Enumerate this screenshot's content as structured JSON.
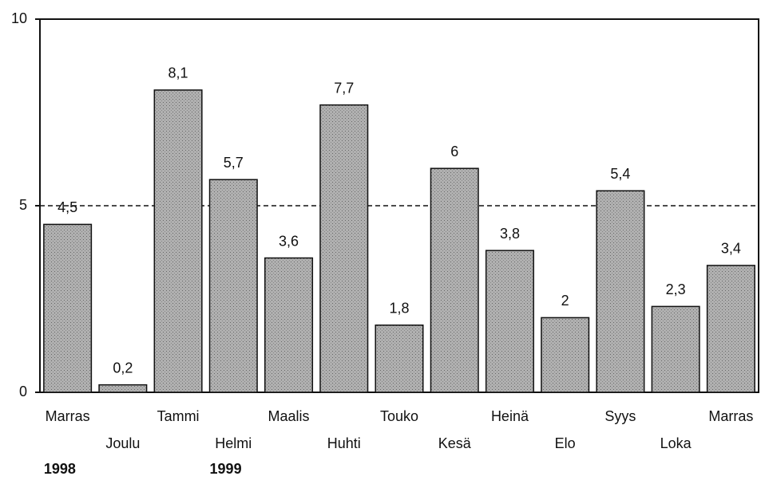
{
  "chart_data": {
    "type": "bar",
    "categories": [
      "Marras",
      "Joulu",
      "Tammi",
      "Helmi",
      "Maalis",
      "Huhti",
      "Touko",
      "Kesä",
      "Heinä",
      "Elo",
      "Syys",
      "Loka",
      "Marras"
    ],
    "values": [
      4.5,
      0.2,
      8.1,
      5.7,
      3.6,
      7.7,
      1.8,
      6,
      3.8,
      2,
      5.4,
      2.3,
      3.4
    ],
    "value_labels": [
      "4,5",
      "0,2",
      "8,1",
      "5,7",
      "3,6",
      "7,7",
      "1,8",
      "6",
      "3,8",
      "2",
      "5,4",
      "2,3",
      "3,4"
    ],
    "color": "#a9a9a9",
    "ylim": [
      0,
      10
    ],
    "yticks": [
      0,
      5,
      10
    ],
    "reference_line": 5,
    "annotations": [
      {
        "text": "1998",
        "category": 0
      },
      {
        "text": "1999",
        "category": 3
      }
    ]
  }
}
